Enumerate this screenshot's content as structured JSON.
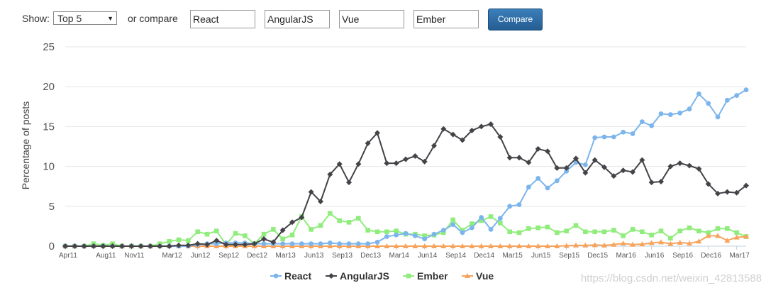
{
  "toolbar": {
    "show_label": "Show:",
    "select_value": "Top 5",
    "compare_text": "or compare",
    "inputs": [
      "React",
      "AngularJS",
      "Vue",
      "Ember"
    ],
    "button_label": "Compare"
  },
  "watermark": "https://blog.csdn.net/weixin_42813588",
  "chart_data": {
    "type": "line",
    "title": "",
    "xlabel": "",
    "ylabel": "Percentage of posts",
    "ylim": [
      0,
      25
    ],
    "yticks": [
      0,
      5,
      10,
      15,
      20,
      25
    ],
    "grid": true,
    "legend": "bottom-center",
    "x": [
      "Apr11",
      "May11",
      "Jun11",
      "Jul11",
      "Aug11",
      "Sep11",
      "Oct11",
      "Nov11",
      "Dec11",
      "Jan12",
      "Feb12",
      "Mar12",
      "Apr12",
      "May12",
      "Jun12",
      "Jul12",
      "Aug12",
      "Sep12",
      "Oct12",
      "Nov12",
      "Dec12",
      "Jan13",
      "Feb13",
      "Mar13",
      "Apr13",
      "May13",
      "Jun13",
      "Jul13",
      "Aug13",
      "Sep13",
      "Oct13",
      "Nov13",
      "Dec13",
      "Jan14",
      "Feb14",
      "Mar14",
      "Apr14",
      "May14",
      "Jun14",
      "Jul14",
      "Aug14",
      "Sep14",
      "Oct14",
      "Nov14",
      "Dec14",
      "Jan15",
      "Feb15",
      "Mar15",
      "Apr15",
      "May15",
      "Jun15",
      "Jul15",
      "Aug15",
      "Sep15",
      "Oct15",
      "Nov15",
      "Dec15",
      "Jan16",
      "Feb16",
      "Mar16",
      "Apr16",
      "May16",
      "Jun16",
      "Jul16",
      "Aug16",
      "Sep16",
      "Oct16",
      "Nov16",
      "Dec16",
      "Jan17",
      "Feb17",
      "Mar17",
      "Apr17"
    ],
    "xtick_labels": [
      "Apr11",
      "Aug11",
      "Nov11",
      "Mar12",
      "Jun12",
      "Sep12",
      "Dec12",
      "Mar13",
      "Jun13",
      "Sep13",
      "Dec13",
      "Mar14",
      "Jun14",
      "Sep14",
      "Dec14",
      "Mar15",
      "Jun15",
      "Sep15",
      "Dec15",
      "Mar16",
      "Jun16",
      "Sep16",
      "Dec16",
      "Mar17"
    ],
    "series": [
      {
        "name": "React",
        "color": "#7cb5ec",
        "marker": "circle",
        "values": [
          0,
          0,
          0,
          0,
          0,
          0,
          0,
          0,
          0,
          0,
          0,
          0,
          0,
          0,
          0.2,
          0.3,
          0.3,
          0.4,
          0.4,
          0.4,
          0.3,
          0.3,
          0.3,
          0.3,
          0.3,
          0.3,
          0.3,
          0.3,
          0.4,
          0.3,
          0.3,
          0.3,
          0.3,
          0.5,
          1.2,
          1.4,
          1.6,
          1.3,
          0.9,
          1.5,
          2.0,
          2.7,
          1.7,
          2.3,
          3.6,
          2.1,
          3.5,
          5.0,
          5.2,
          7.4,
          8.5,
          7.3,
          8.2,
          9.4,
          10.5,
          10.2,
          13.6,
          13.7,
          13.7,
          14.3,
          14.1,
          15.6,
          15.1,
          16.6,
          16.5,
          16.7,
          17.2,
          19.1,
          17.9,
          16.2,
          18.3,
          18.9,
          19.6
        ]
      },
      {
        "name": "AngularJS",
        "color": "#434348",
        "marker": "diamond",
        "values": [
          0,
          0,
          0,
          0,
          0,
          0,
          0,
          0,
          0,
          0,
          0,
          0,
          0.1,
          0.1,
          0.3,
          0.2,
          0.7,
          0.2,
          0.2,
          0.2,
          0.3,
          0.9,
          0.5,
          2.0,
          3.0,
          3.6,
          6.8,
          5.6,
          9.0,
          10.3,
          8.0,
          10.3,
          12.9,
          14.2,
          10.4,
          10.4,
          10.9,
          11.3,
          10.6,
          12.6,
          14.7,
          14.0,
          13.3,
          14.5,
          15.0,
          15.3,
          13.7,
          11.1,
          11.1,
          10.5,
          12.2,
          11.9,
          9.8,
          9.8,
          11.0,
          9.2,
          10.8,
          9.9,
          8.8,
          9.5,
          9.3,
          10.8,
          8.0,
          8.1,
          10.0,
          10.4,
          10.1,
          9.7,
          7.8,
          6.6,
          6.8,
          6.7,
          7.6
        ]
      },
      {
        "name": "Ember",
        "color": "#90ed7d",
        "marker": "square",
        "values": [
          0,
          0,
          0,
          0.3,
          0.1,
          0.3,
          0,
          0,
          0,
          0,
          0.3,
          0.6,
          0.8,
          0.7,
          1.8,
          1.5,
          1.9,
          0.2,
          1.6,
          1.3,
          0.3,
          1.5,
          2.1,
          0.9,
          1.4,
          3.7,
          2.1,
          2.6,
          4.1,
          3.2,
          3.0,
          3.5,
          2.0,
          1.8,
          1.8,
          1.9,
          1.5,
          1.5,
          1.3,
          1.4,
          1.7,
          3.3,
          2.0,
          2.8,
          3.2,
          3.7,
          2.9,
          1.8,
          1.7,
          2.2,
          2.3,
          2.4,
          1.7,
          1.9,
          2.6,
          1.8,
          1.8,
          1.8,
          2.0,
          1.3,
          2.1,
          1.8,
          1.4,
          1.9,
          1.0,
          1.9,
          2.3,
          1.9,
          1.7,
          2.2,
          2.2,
          1.7,
          1.2
        ]
      },
      {
        "name": "Vue",
        "color": "#f7a35c",
        "marker": "triangle",
        "values": [
          0,
          0,
          0,
          0,
          0,
          0,
          0,
          0,
          0,
          0,
          0,
          0,
          0,
          0,
          0,
          0,
          0,
          0,
          0,
          0,
          0,
          0,
          0,
          0,
          0,
          0,
          0,
          0,
          0,
          0,
          0,
          0,
          0,
          0,
          0,
          0,
          0,
          0,
          0,
          0,
          0,
          0,
          0,
          0,
          0,
          0,
          0,
          0,
          0,
          0,
          0,
          0,
          0,
          0.05,
          0.1,
          0.1,
          0.15,
          0.1,
          0.2,
          0.35,
          0.2,
          0.25,
          0.4,
          0.5,
          0.3,
          0.45,
          0.35,
          0.6,
          1.3,
          1.3,
          0.7,
          1.1,
          1.2
        ]
      }
    ]
  }
}
